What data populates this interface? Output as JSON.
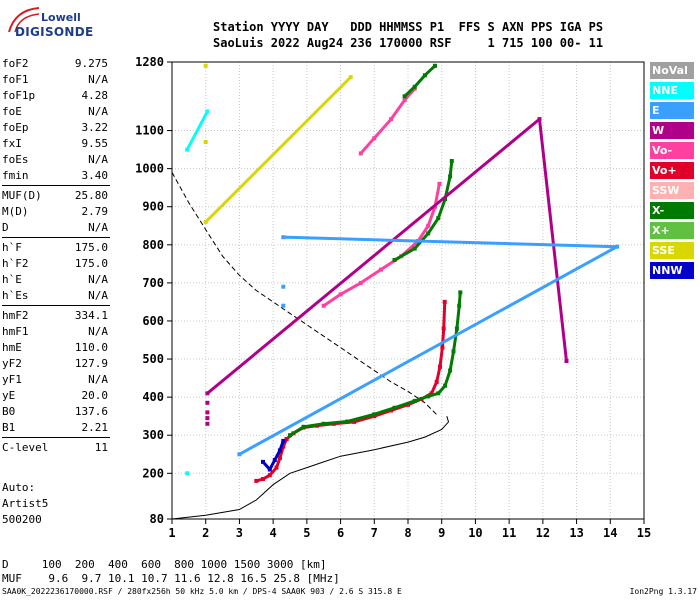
{
  "logo": {
    "line1": "Lowell",
    "line2": "DIGISONDE"
  },
  "header": {
    "line1": "Station YYYY DAY   DDD HHMMSS P1  FFS S AXN PPS IGA PS",
    "line2": "SaoLuis 2022 Aug24 236 170000 RSF     1 715 100 00- 11"
  },
  "params": [
    [
      [
        "foF2",
        "9.275"
      ],
      [
        "foF1",
        "N/A"
      ],
      [
        "foF1p",
        "4.28"
      ],
      [
        "foE",
        "N/A"
      ],
      [
        "foEp",
        "3.22"
      ],
      [
        "fxI",
        "9.55"
      ],
      [
        "foEs",
        "N/A"
      ],
      [
        "fmin",
        "3.40"
      ]
    ],
    [
      [
        "MUF(D)",
        "25.80"
      ],
      [
        "M(D)",
        "2.79"
      ],
      [
        "D",
        "N/A"
      ]
    ],
    [
      [
        "h`F",
        "175.0"
      ],
      [
        "h`F2",
        "175.0"
      ],
      [
        "h`E",
        "N/A"
      ],
      [
        "h`Es",
        "N/A"
      ]
    ],
    [
      [
        "hmF2",
        "334.1"
      ],
      [
        "hmF1",
        "N/A"
      ],
      [
        "hmE",
        "110.0"
      ],
      [
        "yF2",
        "127.9"
      ],
      [
        "yF1",
        "N/A"
      ],
      [
        "yE",
        "20.0"
      ],
      [
        "B0",
        "137.6"
      ],
      [
        "B1",
        "2.21"
      ]
    ],
    [
      [
        "C-level",
        "11"
      ]
    ]
  ],
  "auto": [
    "Auto:",
    "Artist5",
    "500200"
  ],
  "legend": [
    {
      "label": "NoVal",
      "color": "#a0a0a0"
    },
    {
      "label": "NNE",
      "color": "#00ffff"
    },
    {
      "label": "E",
      "color": "#3aa0ff"
    },
    {
      "label": "W",
      "color": "#b0008a"
    },
    {
      "label": "Vo-",
      "color": "#ff40a0"
    },
    {
      "label": "Vo+",
      "color": "#e0002a"
    },
    {
      "label": "SSW",
      "color": "#ffb0b0"
    },
    {
      "label": "X-",
      "color": "#007a00"
    },
    {
      "label": "X+",
      "color": "#60c040"
    },
    {
      "label": "SSE",
      "color": "#d8d800"
    },
    {
      "label": "NNW",
      "color": "#0000c8"
    }
  ],
  "mufdist": {
    "line1": "D     100  200  400  600  800 1000 1500 3000 [km]",
    "line2": "MUF    9.6  9.7 10.1 10.7 11.6 12.8 16.5 25.8 [MHz]"
  },
  "footer": "SAA0K_2022236170000.RSF / 280fx256h 50 kHz 5.0 km / DPS-4 SAA0K 903 / 2.6 S 315.8 E",
  "version": "Ion2Png 1.3.17",
  "chart_data": {
    "type": "scatter",
    "x_ticks": [
      1,
      2,
      3,
      4,
      5,
      6,
      7,
      8,
      9,
      10,
      11,
      12,
      13,
      14,
      15
    ],
    "y_ticks": [
      80,
      200,
      300,
      400,
      500,
      600,
      700,
      800,
      900,
      1000,
      1100,
      1280
    ],
    "xlim": [
      1,
      15
    ],
    "ylim": [
      80,
      1280
    ],
    "grid": true,
    "series": [
      {
        "color": "#e0002a",
        "points": [
          [
            3.5,
            180
          ],
          [
            3.7,
            185
          ],
          [
            3.9,
            195
          ],
          [
            4.1,
            215
          ],
          [
            4.2,
            240
          ],
          [
            4.3,
            270
          ],
          [
            4.4,
            290
          ],
          [
            4.6,
            305
          ],
          [
            4.9,
            320
          ],
          [
            5.3,
            325
          ],
          [
            5.8,
            330
          ],
          [
            6.4,
            335
          ],
          [
            7.0,
            350
          ],
          [
            7.5,
            365
          ],
          [
            8.0,
            380
          ],
          [
            8.4,
            395
          ],
          [
            8.7,
            410
          ],
          [
            8.85,
            440
          ],
          [
            8.95,
            480
          ],
          [
            9.02,
            530
          ],
          [
            9.06,
            580
          ],
          [
            9.09,
            650
          ]
        ]
      },
      {
        "color": "#007a00",
        "points": [
          [
            4.5,
            300
          ],
          [
            4.9,
            322
          ],
          [
            5.5,
            330
          ],
          [
            6.2,
            336
          ],
          [
            7.0,
            355
          ],
          [
            7.6,
            372
          ],
          [
            8.2,
            390
          ],
          [
            8.6,
            402
          ],
          [
            8.9,
            410
          ],
          [
            9.1,
            430
          ],
          [
            9.25,
            470
          ],
          [
            9.35,
            520
          ],
          [
            9.45,
            580
          ],
          [
            9.52,
            640
          ],
          [
            9.55,
            675
          ]
        ]
      },
      {
        "color": "#ff40a0",
        "points": [
          [
            5.5,
            640
          ],
          [
            6.0,
            670
          ],
          [
            6.6,
            700
          ],
          [
            7.2,
            735
          ],
          [
            7.8,
            770
          ],
          [
            8.3,
            810
          ],
          [
            8.6,
            850
          ],
          [
            8.8,
            900
          ],
          [
            8.93,
            960
          ]
        ]
      },
      {
        "color": "#007a00",
        "points": [
          [
            7.6,
            760
          ],
          [
            8.2,
            790
          ],
          [
            8.6,
            830
          ],
          [
            8.9,
            870
          ],
          [
            9.1,
            920
          ],
          [
            9.25,
            980
          ],
          [
            9.3,
            1020
          ]
        ]
      },
      {
        "color": "#ff40a0",
        "points": [
          [
            6.6,
            1040
          ],
          [
            7.0,
            1080
          ],
          [
            7.5,
            1130
          ],
          [
            7.9,
            1180
          ],
          [
            8.2,
            1210
          ]
        ]
      },
      {
        "color": "#007a00",
        "points": [
          [
            7.9,
            1190
          ],
          [
            8.2,
            1215
          ],
          [
            8.5,
            1245
          ],
          [
            8.8,
            1270
          ]
        ]
      },
      {
        "color": "#0000c8",
        "points": [
          [
            3.7,
            230
          ],
          [
            3.9,
            210
          ],
          [
            4.05,
            235
          ],
          [
            4.2,
            260
          ],
          [
            4.3,
            285
          ]
        ]
      },
      {
        "color": "#b0008a",
        "points": [
          [
            2.05,
            330
          ],
          [
            2.05,
            345
          ],
          [
            2.05,
            360
          ],
          [
            2.05,
            385
          ],
          [
            2.05,
            410
          ],
          [
            11.9,
            1130
          ],
          [
            12.7,
            495
          ]
        ]
      },
      {
        "color": "#3aa0ff",
        "points": [
          [
            4.3,
            640
          ],
          [
            4.3,
            690
          ],
          [
            4.3,
            820
          ],
          [
            14.2,
            795
          ],
          [
            3.0,
            250
          ]
        ]
      },
      {
        "color": "#d8d800",
        "points": [
          [
            2.0,
            1270
          ],
          [
            2.0,
            1070
          ],
          [
            2.0,
            860
          ],
          [
            6.3,
            1240
          ]
        ]
      },
      {
        "color": "#00ffff",
        "points": [
          [
            1.45,
            200
          ],
          [
            1.45,
            1050
          ],
          [
            2.05,
            1150
          ]
        ]
      }
    ],
    "profile_line": [
      [
        1.0,
        80
      ],
      [
        2.0,
        90
      ],
      [
        3.0,
        105
      ],
      [
        3.5,
        130
      ],
      [
        4.0,
        170
      ],
      [
        4.5,
        200
      ],
      [
        5.0,
        215
      ],
      [
        5.5,
        230
      ],
      [
        6.0,
        245
      ],
      [
        7.0,
        262
      ],
      [
        8.0,
        282
      ],
      [
        8.5,
        295
      ],
      [
        9.0,
        315
      ],
      [
        9.2,
        335
      ],
      [
        9.15,
        350
      ]
    ],
    "muf_line": [
      [
        1.0,
        990
      ],
      [
        1.5,
        910
      ],
      [
        2.0,
        840
      ],
      [
        2.5,
        770
      ],
      [
        3.0,
        720
      ],
      [
        3.5,
        680
      ],
      [
        4.0,
        650
      ],
      [
        4.5,
        620
      ],
      [
        5.0,
        590
      ],
      [
        5.5,
        560
      ],
      [
        6.0,
        530
      ],
      [
        6.5,
        500
      ],
      [
        7.0,
        470
      ],
      [
        7.5,
        440
      ],
      [
        8.0,
        415
      ],
      [
        8.5,
        385
      ],
      [
        8.9,
        350
      ]
    ]
  }
}
